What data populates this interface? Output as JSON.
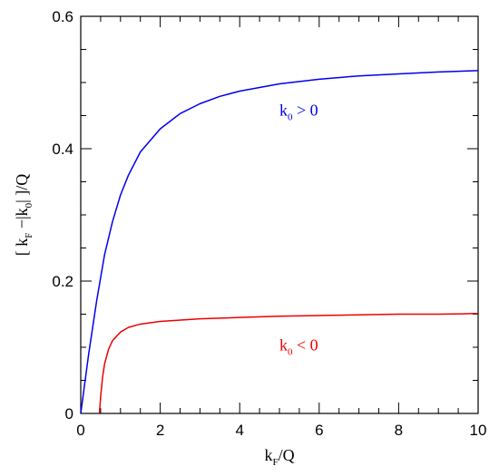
{
  "chart_data": {
    "type": "line",
    "xlabel": {
      "main": "k",
      "sub": "F",
      "rest": "/Q"
    },
    "ylabel": {
      "pre": "[  k",
      "sub1": "F",
      "mid": " −|k",
      "sub2": "0",
      "rest": "|  ]/Q"
    },
    "xlim": [
      0,
      10
    ],
    "ylim": [
      0,
      0.6
    ],
    "xticks": [
      0,
      2,
      4,
      6,
      8,
      10
    ],
    "yticks": [
      0,
      0.2,
      0.4,
      0.6
    ],
    "xtick_labels": [
      "0",
      "2",
      "4",
      "6",
      "8",
      "10"
    ],
    "ytick_labels": [
      "0",
      "0.2",
      "0.4",
      "0.6"
    ],
    "grid": false,
    "series": [
      {
        "color": "#0000ee",
        "x": [
          0,
          0.1,
          0.2,
          0.3,
          0.4,
          0.5,
          0.6,
          0.8,
          1.0,
          1.2,
          1.5,
          2.0,
          2.5,
          3.0,
          3.5,
          4.0,
          5.0,
          6.0,
          7.0,
          8.0,
          9.0,
          10.0
        ],
        "y": [
          0,
          0.045,
          0.09,
          0.13,
          0.17,
          0.205,
          0.24,
          0.29,
          0.33,
          0.36,
          0.395,
          0.43,
          0.453,
          0.468,
          0.479,
          0.487,
          0.498,
          0.505,
          0.51,
          0.513,
          0.516,
          0.518
        ]
      },
      {
        "color": "#ee0000",
        "x": [
          0.47,
          0.5,
          0.55,
          0.6,
          0.7,
          0.8,
          1.0,
          1.2,
          1.5,
          2.0,
          3.0,
          4.0,
          5.0,
          6.0,
          7.0,
          8.0,
          9.0,
          10.0
        ],
        "y": [
          0,
          0.025,
          0.055,
          0.075,
          0.097,
          0.11,
          0.123,
          0.13,
          0.135,
          0.139,
          0.143,
          0.145,
          0.147,
          0.148,
          0.149,
          0.15,
          0.15,
          0.151
        ]
      }
    ],
    "annotations": [
      {
        "main": "k",
        "sub": "0",
        "rest": " > 0",
        "color": "#0000ee",
        "x": 5.0,
        "y": 0.45
      },
      {
        "main": "k",
        "sub": "0",
        "rest": " < 0",
        "color": "#ee0000",
        "x": 5.0,
        "y": 0.095
      }
    ]
  }
}
